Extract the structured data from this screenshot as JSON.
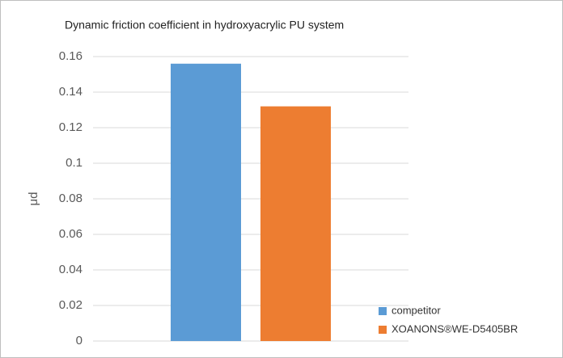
{
  "chart_data": {
    "type": "bar",
    "title": "Dynamic friction coefficient in hydroxyacrylic PU system",
    "y_label": "μd",
    "categories": [
      null
    ],
    "series": [
      {
        "name": "competitor",
        "color": "#5b9bd5",
        "values": [
          0.156
        ]
      },
      {
        "name": "XOANONS®WE-D5405BR",
        "color": "#ed7d31",
        "values": [
          0.132
        ]
      }
    ],
    "ylim": [
      0,
      0.16
    ],
    "yticks": [
      0,
      0.02,
      0.04,
      0.06,
      0.08,
      0.1,
      0.12,
      0.14,
      0.16
    ],
    "grid": true,
    "legend": "bottom-right"
  }
}
